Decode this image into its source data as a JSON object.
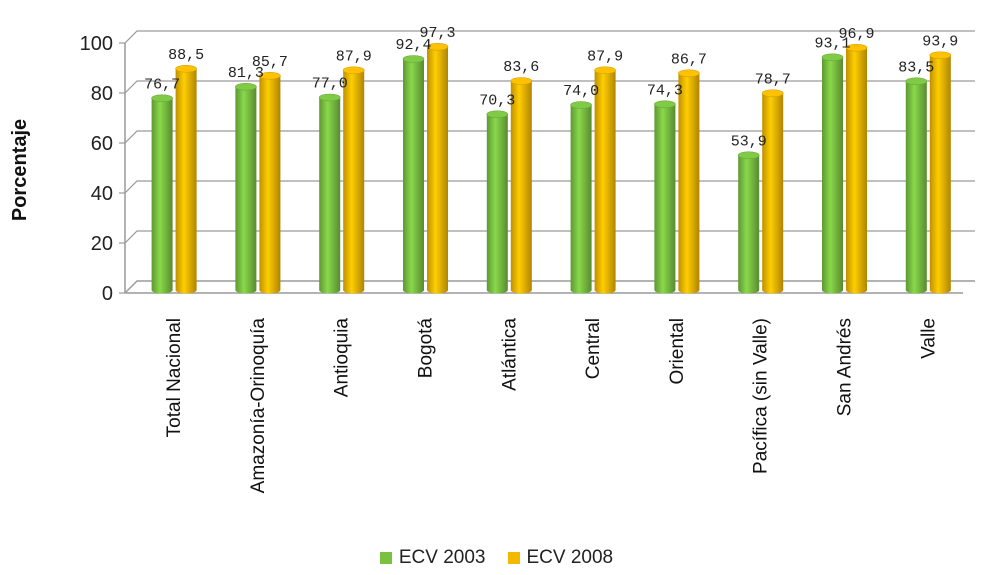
{
  "colors": {
    "series_2003": "#7ac142",
    "series_2008": "#f5b800",
    "grid": "#9a9a9a"
  },
  "chart_data": {
    "type": "bar",
    "title": "",
    "xlabel": "",
    "ylabel": "Porcentaje",
    "ylim": [
      0,
      100
    ],
    "yticks": [
      0,
      20,
      40,
      60,
      80,
      100
    ],
    "grid": true,
    "legend_position": "bottom",
    "categories": [
      "Total Nacional",
      "Amazonía-Orinoquía",
      "Antioquia",
      "Bogotá",
      "Atlántica",
      "Central",
      "Oriental",
      "Pacífica (sin Valle)",
      "San Andrés",
      "Valle"
    ],
    "series": [
      {
        "name": "ECV 2003",
        "values": [
          76.7,
          81.3,
          77.0,
          92.4,
          70.3,
          74.0,
          74.3,
          53.9,
          93.1,
          83.5
        ],
        "labels": [
          "76,7",
          "81,3",
          "77,0",
          "92,4",
          "70,3",
          "74,0",
          "74,3",
          "53,9",
          "93,1",
          "83,5"
        ]
      },
      {
        "name": "ECV 2008",
        "values": [
          88.5,
          85.7,
          87.9,
          97.3,
          83.6,
          87.9,
          86.7,
          78.7,
          96.9,
          93.9
        ],
        "labels": [
          "88,5",
          "85,7",
          "87,9",
          "97,3",
          "83,6",
          "87,9",
          "86,7",
          "78,7",
          "96,9",
          "93,9"
        ]
      }
    ]
  }
}
